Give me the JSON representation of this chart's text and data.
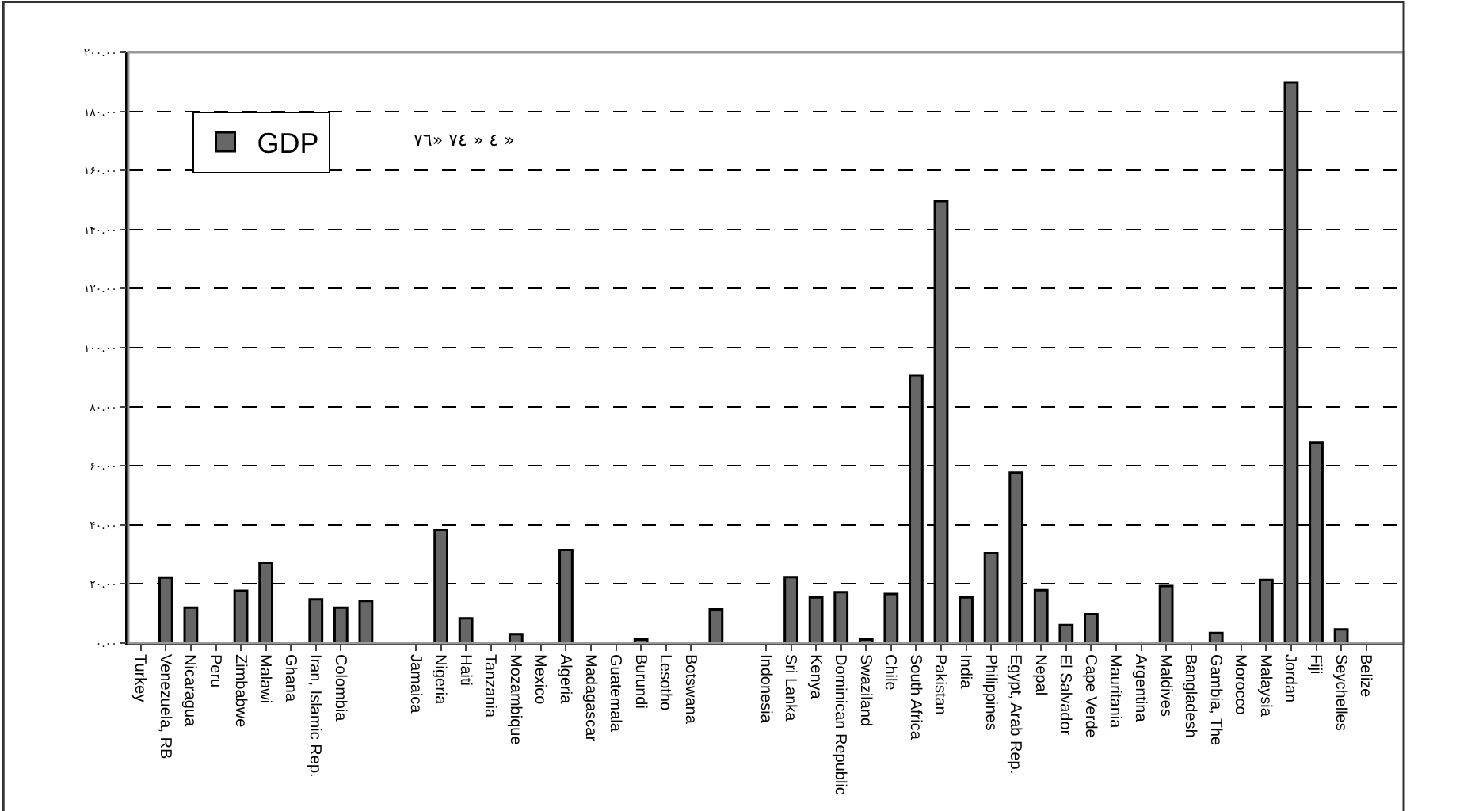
{
  "chart_data": {
    "type": "bar",
    "categories": [
      "Turkey",
      "Venezuela, RB",
      "Nicaragua",
      "Peru",
      "Zimbabwe",
      "Malawi",
      "Ghana",
      "Iran, Islamic Rep.",
      "Colombia",
      null,
      null,
      "Jamaica",
      "Nigeria",
      "Haiti",
      "Tanzania",
      "Mozambique",
      "Mexico",
      "Algeria",
      "Madagascar",
      "Guatemala",
      "Burundi",
      "Lesotho",
      "Botswana",
      null,
      null,
      "Indonesia",
      "Sri Lanka",
      "Kenya",
      "Dominican Republic",
      "Swaziland",
      "Chile",
      "South Africa",
      "Pakistan",
      "India",
      "Philippines",
      "Egypt, Arab Rep.",
      "Nepal",
      "El Salvador",
      "Cape Verde",
      "Mauritania",
      "Argentina",
      "Maldives",
      "Bangladesh",
      "Gambia, The",
      "Morocco",
      "Malaysia",
      "Jordan",
      "Fiji",
      "Seychelles",
      "Belize",
      null
    ],
    "series": [
      {
        "name": "GDP",
        "color": "#666666",
        "values": [
          null,
          22.2,
          12.0,
          null,
          17.7,
          27.2,
          null,
          14.8,
          12.0,
          14.3,
          null,
          null,
          38.2,
          8.4,
          null,
          3.0,
          null,
          31.5,
          null,
          null,
          1.2,
          null,
          null,
          11.4,
          null,
          null,
          22.3,
          15.5,
          17.2,
          1.2,
          16.6,
          90.6,
          149.6,
          15.5,
          30.4,
          57.7,
          17.9,
          6.1,
          9.8,
          null,
          null,
          19.3,
          null,
          3.4,
          null,
          21.4,
          189.8,
          67.9,
          4.6,
          null,
          null
        ]
      }
    ],
    "annotations": [
      "٤ « ٧٤ «٧٦ »"
    ],
    "ylim": [
      0,
      200
    ],
    "yticks": [
      {
        "value": 0,
        "label": "۰.۰۰"
      },
      {
        "value": 20,
        "label": "۲۰.۰۰"
      },
      {
        "value": 40,
        "label": "۴۰.۰۰"
      },
      {
        "value": 60,
        "label": "۶۰.۰۰"
      },
      {
        "value": 80,
        "label": "۸۰.۰۰"
      },
      {
        "value": 100,
        "label": "۱۰۰.۰۰"
      },
      {
        "value": 120,
        "label": "۱۲۰.۰۰"
      },
      {
        "value": 140,
        "label": "۱۴۰.۰۰"
      },
      {
        "value": 160,
        "label": "۱۶۰.۰۰"
      },
      {
        "value": 180,
        "label": "۱۸۰.۰۰"
      },
      {
        "value": 200,
        "label": "۲۰۰.۰۰"
      }
    ],
    "grid": "y",
    "legend": "top left"
  }
}
